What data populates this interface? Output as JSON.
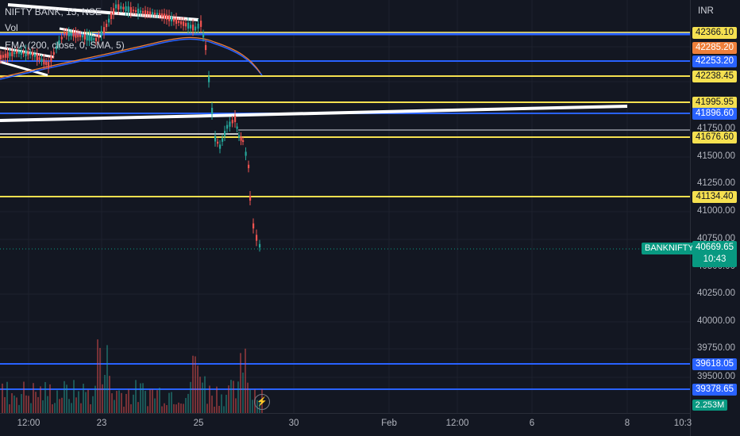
{
  "legend": {
    "symbol": "NIFTY BANK, 15, NSE",
    "vol": "Vol",
    "ema": "EMA (200, close, 0, SMA, 5)"
  },
  "currency": "INR",
  "colors": {
    "background": "#131722",
    "yellow_line": "#f5e050",
    "blue_line": "#2962ff",
    "up_candle": "#26a69a",
    "down_candle": "#ef5350",
    "ema_line": "#2962ff",
    "sma_line": "#ef7f3a",
    "trendline": "#ffffff"
  },
  "price_axis": [
    "41500.00",
    "41250.00",
    "41000.00",
    "40750.00",
    "40500.00",
    "40250.00",
    "40000.00",
    "39750.00",
    "39500.00",
    "41750.00"
  ],
  "level_tags": [
    {
      "label": "42366.10",
      "kind": "yellow"
    },
    {
      "label": "42285.20",
      "kind": "orange"
    },
    {
      "label": "42253.20",
      "kind": "blue"
    },
    {
      "label": "42238.45",
      "kind": "yellow"
    },
    {
      "label": "41995.95",
      "kind": "yellow"
    },
    {
      "label": "41896.60",
      "kind": "blue"
    },
    {
      "label": "41676.60",
      "kind": "yellow"
    },
    {
      "label": "41134.40",
      "kind": "yellow"
    },
    {
      "label": "39618.05",
      "kind": "blue"
    },
    {
      "label": "39378.65",
      "kind": "blue"
    }
  ],
  "last_price": {
    "symbol": "BANKNIFTY",
    "price": "40669.65",
    "countdown": "10:43"
  },
  "volume_tag": "2.253M",
  "time_axis": [
    "12:00",
    "23",
    "25",
    "30",
    "Feb",
    "12:00",
    "6",
    "8",
    "10:3"
  ],
  "icons": {
    "replay": "bolt-icon"
  }
}
